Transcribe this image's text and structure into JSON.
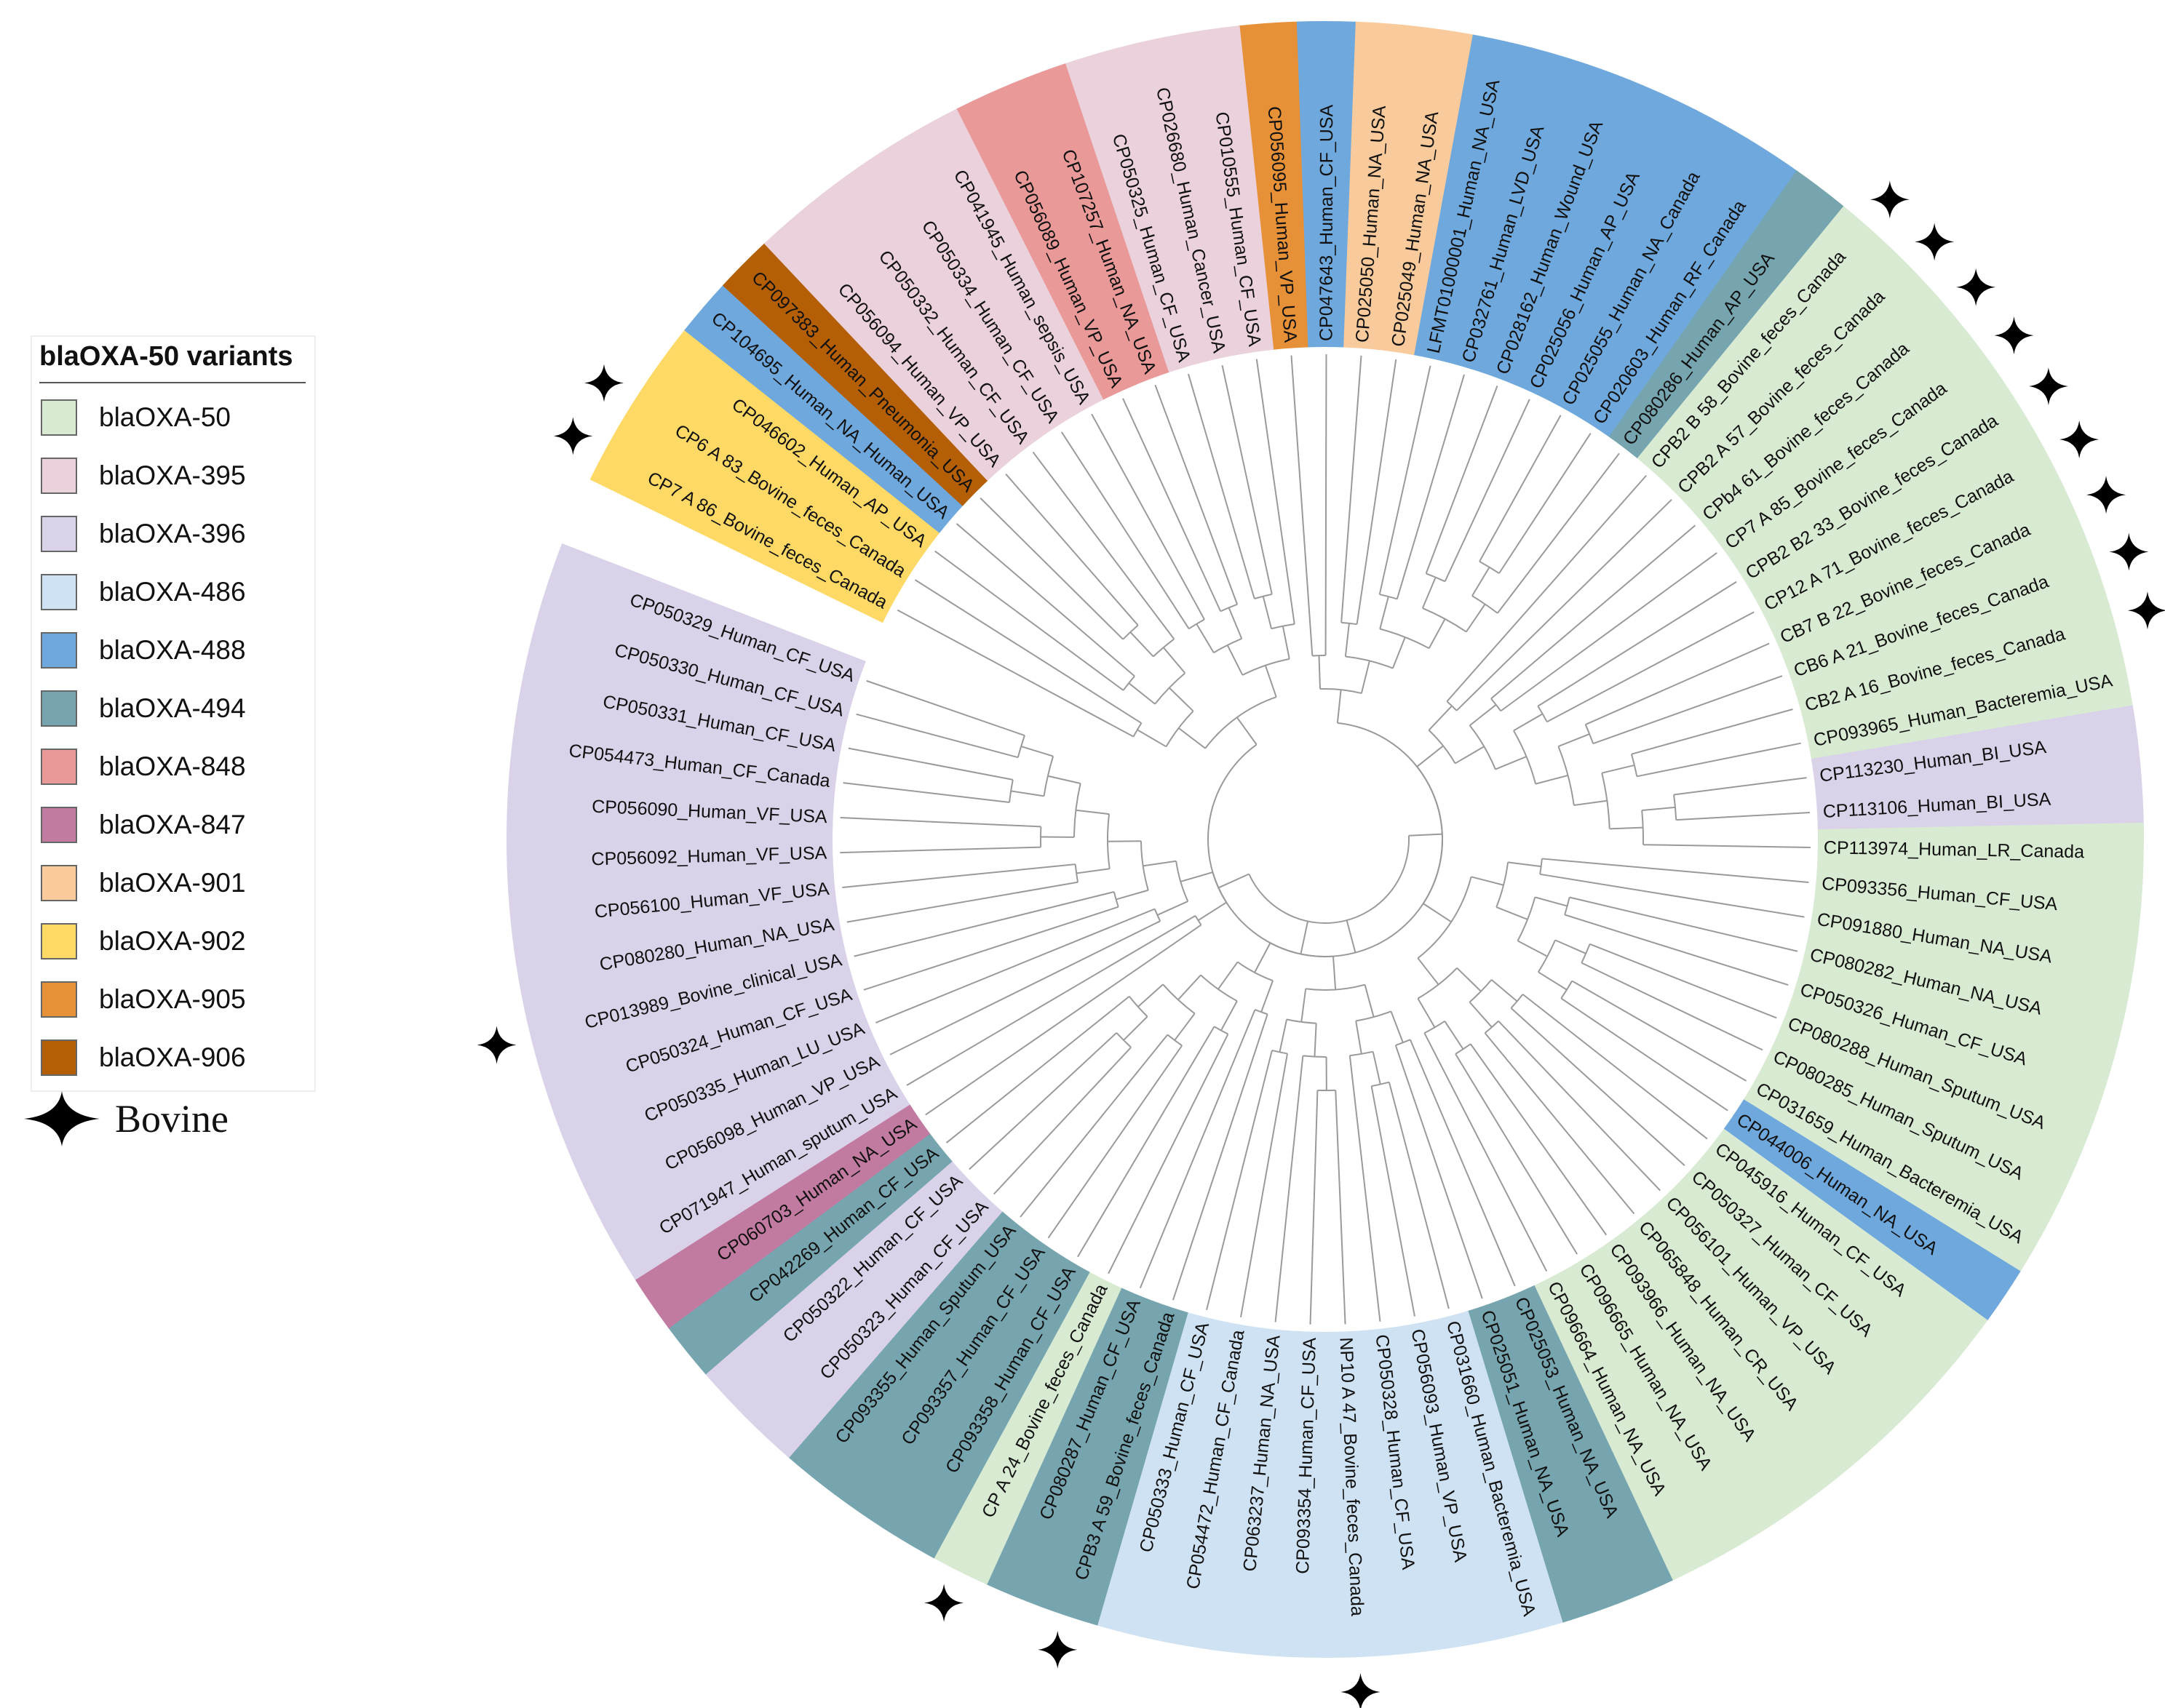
{
  "legend": {
    "title": "blaOXA-50 variants",
    "items": [
      {
        "key": "50",
        "label": "blaOXA-50",
        "color": "#d9ead3"
      },
      {
        "key": "395",
        "label": "blaOXA-395",
        "color": "#ead1dc"
      },
      {
        "key": "396",
        "label": "blaOXA-396",
        "color": "#d9d2e9"
      },
      {
        "key": "486",
        "label": "blaOXA-486",
        "color": "#cfe2f3"
      },
      {
        "key": "488",
        "label": "blaOXA-488",
        "color": "#6fa8dc"
      },
      {
        "key": "494",
        "label": "blaOXA-494",
        "color": "#76a5af"
      },
      {
        "key": "848",
        "label": "blaOXA-848",
        "color": "#ea9999"
      },
      {
        "key": "847",
        "label": "blaOXA-847",
        "color": "#c27ba0"
      },
      {
        "key": "901",
        "label": "blaOXA-901",
        "color": "#f9cb9c"
      },
      {
        "key": "902",
        "label": "blaOXA-902",
        "color": "#ffd966"
      },
      {
        "key": "905",
        "label": "blaOXA-905",
        "color": "#e69138"
      },
      {
        "key": "906",
        "label": "blaOXA-906",
        "color": "#b45f06"
      }
    ],
    "bovine_label": "Bovine"
  },
  "leaves": [
    {
      "label": "CP056095_Human_VP_USA",
      "variant": "905",
      "bovine": false
    },
    {
      "label": "CP047643_Human_CF_USA",
      "variant": "488",
      "bovine": false
    },
    {
      "label": "CP025050_Human_NA_USA",
      "variant": "901",
      "bovine": false
    },
    {
      "label": "CP025049_Human_NA_USA",
      "variant": "901",
      "bovine": false
    },
    {
      "label": "LFMT01000001_Human_NA_USA",
      "variant": "488",
      "bovine": false
    },
    {
      "label": "CP032761_Human_LVD_USA",
      "variant": "488",
      "bovine": false
    },
    {
      "label": "CP028162_Human_Wound_USA",
      "variant": "488",
      "bovine": false
    },
    {
      "label": "CP025056_Human_AP_USA",
      "variant": "488",
      "bovine": false
    },
    {
      "label": "CP025055_Human_NA_Canada",
      "variant": "488",
      "bovine": false
    },
    {
      "label": "CP020603_Human_RF_Canada",
      "variant": "488",
      "bovine": false
    },
    {
      "label": "CP080286_Human_AP_USA",
      "variant": "494",
      "bovine": false
    },
    {
      "label": "CPB2 B 58_Bovine_feces_Canada",
      "variant": "50",
      "bovine": true
    },
    {
      "label": "CPB2 A 57_Bovine_feces_Canada",
      "variant": "50",
      "bovine": true
    },
    {
      "label": "CPb4 61_Bovine_feces_Canada",
      "variant": "50",
      "bovine": true
    },
    {
      "label": "CP7 A 85_Bovine_feces_Canada",
      "variant": "50",
      "bovine": true
    },
    {
      "label": "CPB2 B2 33_Bovine_feces_Canada",
      "variant": "50",
      "bovine": true
    },
    {
      "label": "CP12 A 71_Bovine_feces_Canada",
      "variant": "50",
      "bovine": true
    },
    {
      "label": "CB7 B 22_Bovine_feces_Canada",
      "variant": "50",
      "bovine": true
    },
    {
      "label": "CB6 A 21_Bovine_feces_Canada",
      "variant": "50",
      "bovine": true
    },
    {
      "label": "CB2 A 16_Bovine_feces_Canada",
      "variant": "50",
      "bovine": true
    },
    {
      "label": "CP093965_Human_Bacteremia_USA",
      "variant": "50",
      "bovine": false
    },
    {
      "label": "CP113230_Human_BI_USA",
      "variant": "396",
      "bovine": false
    },
    {
      "label": "CP113106_Human_BI_USA",
      "variant": "396",
      "bovine": false
    },
    {
      "label": "CP113974_Human_LR_Canada",
      "variant": "50",
      "bovine": false
    },
    {
      "label": "CP093356_Human_CF_USA",
      "variant": "50",
      "bovine": false
    },
    {
      "label": "CP091880_Human_NA_USA",
      "variant": "50",
      "bovine": false
    },
    {
      "label": "CP080282_Human_NA_USA",
      "variant": "50",
      "bovine": false
    },
    {
      "label": "CP050326_Human_CF_USA",
      "variant": "50",
      "bovine": false
    },
    {
      "label": "CP080288_Human_Sputum_USA",
      "variant": "50",
      "bovine": false
    },
    {
      "label": "CP080285_Human_Sputum_USA",
      "variant": "50",
      "bovine": false
    },
    {
      "label": "CP031659_Human_Bacteremia_USA",
      "variant": "50",
      "bovine": false
    },
    {
      "label": "CP044006_Human_NA_USA",
      "variant": "488",
      "bovine": false
    },
    {
      "label": "CP045916_Human_CF_USA",
      "variant": "50",
      "bovine": false
    },
    {
      "label": "CP050327_Human_CF_USA",
      "variant": "50",
      "bovine": false
    },
    {
      "label": "CP056101_Human_VP_USA",
      "variant": "50",
      "bovine": false
    },
    {
      "label": "CP065848_Human_CR_USA",
      "variant": "50",
      "bovine": false
    },
    {
      "label": "CP093966_Human_NA_USA",
      "variant": "50",
      "bovine": false
    },
    {
      "label": "CP096665_Human_NA_USA",
      "variant": "50",
      "bovine": false
    },
    {
      "label": "CP096664_Human_NA_USA",
      "variant": "50",
      "bovine": false
    },
    {
      "label": "CP025053_Human_NA_USA",
      "variant": "494",
      "bovine": false
    },
    {
      "label": "CP025051_Human_NA_USA",
      "variant": "494",
      "bovine": false
    },
    {
      "label": "CP031660_Human_Bacteremia_USA",
      "variant": "486",
      "bovine": false
    },
    {
      "label": "CP056093_Human_VP_USA",
      "variant": "486",
      "bovine": false
    },
    {
      "label": "CP050328_Human_CF_USA",
      "variant": "486",
      "bovine": false
    },
    {
      "label": "NP10 A 47_Bovine_feces_Canada",
      "variant": "486",
      "bovine": true
    },
    {
      "label": "CP093354_Human_CF_USA",
      "variant": "486",
      "bovine": false
    },
    {
      "label": "CP063237_Human_NA_USA",
      "variant": "486",
      "bovine": false
    },
    {
      "label": "CP054472_Human_CF_Canada",
      "variant": "486",
      "bovine": false
    },
    {
      "label": "CP050333_Human_CF_USA",
      "variant": "486",
      "bovine": false
    },
    {
      "label": "CPB3 A 59_Bovine_feces_Canada",
      "variant": "494",
      "bovine": true
    },
    {
      "label": "CP080287_Human_CF_USA",
      "variant": "494",
      "bovine": false
    },
    {
      "label": "CP A 24_Bovine_feces_Canada",
      "variant": "50",
      "bovine": true
    },
    {
      "label": "CP093358_Human_CF_USA",
      "variant": "494",
      "bovine": false
    },
    {
      "label": "CP093357_Human_CF_USA",
      "variant": "494",
      "bovine": false
    },
    {
      "label": "CP093355_Human_Sputum_USA",
      "variant": "494",
      "bovine": false
    },
    {
      "label": "CP050323_Human_CF_USA",
      "variant": "396",
      "bovine": false
    },
    {
      "label": "CP050322_Human_CF_USA",
      "variant": "396",
      "bovine": false
    },
    {
      "label": "CP042269_Human_CF_USA",
      "variant": "494",
      "bovine": false
    },
    {
      "label": "CP060703_Human_NA_USA",
      "variant": "847",
      "bovine": false
    },
    {
      "label": "CP071947_Human_sputum_USA",
      "variant": "396",
      "bovine": false
    },
    {
      "label": "CP056098_Human_VP_USA",
      "variant": "396",
      "bovine": false
    },
    {
      "label": "CP050335_Human_LU_USA",
      "variant": "396",
      "bovine": false
    },
    {
      "label": "CP050324_Human_CF_USA",
      "variant": "396",
      "bovine": false
    },
    {
      "label": "CP013989_Bovine_clinical_USA",
      "variant": "396",
      "bovine": true
    },
    {
      "label": "CP080280_Human_NA_USA",
      "variant": "396",
      "bovine": false
    },
    {
      "label": "CP056100_Human_VF_USA",
      "variant": "396",
      "bovine": false
    },
    {
      "label": "CP056092_Human_VF_USA",
      "variant": "396",
      "bovine": false
    },
    {
      "label": "CP056090_Human_VF_USA",
      "variant": "396",
      "bovine": false
    },
    {
      "label": "CP054473_Human_CF_Canada",
      "variant": "396",
      "bovine": false
    },
    {
      "label": "CP050331_Human_CF_USA",
      "variant": "396",
      "bovine": false
    },
    {
      "label": "CP050330_Human_CF_USA",
      "variant": "396",
      "bovine": false
    },
    {
      "label": "CP050329_Human_CF_USA",
      "variant": "396",
      "bovine": false
    },
    {
      "label": "CP7 A 86_Bovine_feces_Canada",
      "variant": "902",
      "bovine": true
    },
    {
      "label": "CP6 A 83_Bovine_feces_Canada",
      "variant": "902",
      "bovine": true
    },
    {
      "label": "CP046602_Human_AP_USA",
      "variant": "902",
      "bovine": false
    },
    {
      "label": "CP104695_Human_NA_Human_USA",
      "variant": "488",
      "bovine": false
    },
    {
      "label": "CP097383_Human_Pneumonia_USA",
      "variant": "906",
      "bovine": false
    },
    {
      "label": "CP056094_Human_VP_USA",
      "variant": "395",
      "bovine": false
    },
    {
      "label": "CP050332_Human_CF_USA",
      "variant": "395",
      "bovine": false
    },
    {
      "label": "CP050334_Human_CF_USA",
      "variant": "395",
      "bovine": false
    },
    {
      "label": "CP041945_Human_sepsis_USA",
      "variant": "395",
      "bovine": false
    },
    {
      "label": "CP056089_Human_VP_USA",
      "variant": "848",
      "bovine": false
    },
    {
      "label": "CP107257_Human_NA_USA",
      "variant": "848",
      "bovine": false
    },
    {
      "label": "CP050325_Human_CF_USA",
      "variant": "395",
      "bovine": false
    },
    {
      "label": "CP026680_Human_Cancer_USA",
      "variant": "395",
      "bovine": false
    },
    {
      "label": "CP010555_Human_CF_USA",
      "variant": "395",
      "bovine": false
    }
  ]
}
